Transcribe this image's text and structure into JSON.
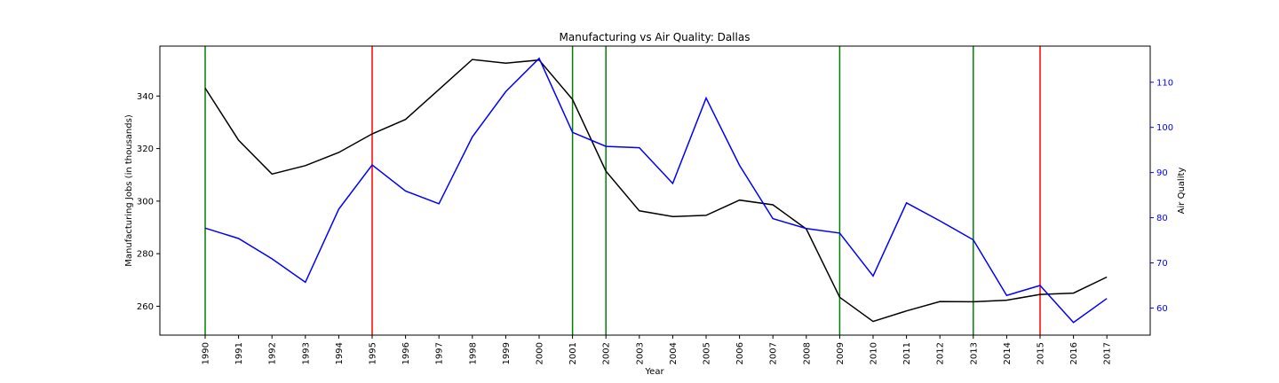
{
  "chart_data": {
    "type": "line",
    "title": "Manufacturing vs Air Quality: Dallas",
    "xlabel": "Year",
    "ylabel_left": "Manufacturing Jobs (in thousands)",
    "ylabel_right": "Air Quality",
    "categories": [
      "1990",
      "1991",
      "1992",
      "1993",
      "1994",
      "1995",
      "1996",
      "1997",
      "1998",
      "1999",
      "2000",
      "2001",
      "2002",
      "2003",
      "2004",
      "2005",
      "2006",
      "2007",
      "2008",
      "2009",
      "2010",
      "2011",
      "2012",
      "2013",
      "2014",
      "2015",
      "2016",
      "2017"
    ],
    "ylim_left": [
      249,
      359
    ],
    "ylim_right": [
      54,
      118
    ],
    "yticks_left": [
      260,
      280,
      300,
      320,
      340
    ],
    "yticks_right": [
      60,
      70,
      80,
      90,
      100,
      110
    ],
    "series": [
      {
        "axis": "left",
        "color": "#000000",
        "values": [
          343.0,
          323.2,
          310.3,
          313.5,
          318.5,
          325.6,
          331.1,
          342.5,
          353.9,
          352.5,
          353.7,
          338.7,
          311.4,
          296.3,
          294.1,
          294.6,
          300.4,
          298.6,
          289.4,
          263.4,
          254.2,
          258.2,
          261.8,
          261.7,
          262.3,
          264.5,
          265.0,
          271.1
        ]
      },
      {
        "axis": "right",
        "color": "#0000ff",
        "values": [
          77.7,
          75.4,
          70.9,
          65.7,
          81.9,
          91.7,
          85.9,
          83.1,
          97.9,
          107.9,
          115.3,
          98.9,
          95.8,
          95.5,
          87.6,
          106.5,
          91.6,
          79.8,
          77.6,
          76.6,
          67.1,
          83.3,
          79.3,
          75.1,
          62.8,
          65.0,
          56.8,
          62.1
        ]
      }
    ],
    "vertical_lines": [
      {
        "year": "1990",
        "color": "#008000"
      },
      {
        "year": "1995",
        "color": "#ff0000"
      },
      {
        "year": "2001",
        "color": "#008000"
      },
      {
        "year": "2002",
        "color": "#008000"
      },
      {
        "year": "2009",
        "color": "#008000"
      },
      {
        "year": "2013",
        "color": "#008000"
      },
      {
        "year": "2015",
        "color": "#ff0000"
      }
    ],
    "left_tick_color": "#000000",
    "right_tick_color": "#0000ff",
    "grid": false,
    "legend": "none"
  }
}
